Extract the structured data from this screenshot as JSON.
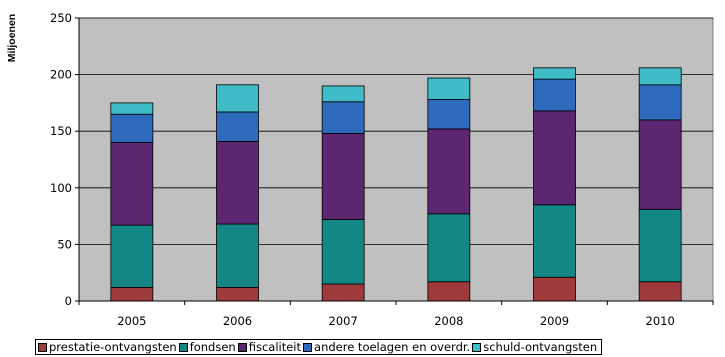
{
  "chart_data": {
    "type": "bar",
    "stacked": true,
    "ylabel": "Miljoenen",
    "xlabel": "",
    "ylim": [
      0,
      250
    ],
    "yticks": [
      0,
      50,
      100,
      150,
      200,
      250
    ],
    "grid": true,
    "legend_position": "bottom",
    "plot_background": "#c0c0c0",
    "categories": [
      "2005",
      "2006",
      "2007",
      "2008",
      "2009",
      "2010"
    ],
    "series": [
      {
        "name": "prestatie-ontvangsten",
        "color": "#9e3a3c",
        "values": [
          12,
          12,
          15,
          17,
          21,
          17
        ]
      },
      {
        "name": "fondsen",
        "color": "#138785",
        "values": [
          55,
          56,
          57,
          60,
          64,
          64
        ]
      },
      {
        "name": "fiscaliteit",
        "color": "#5c2670",
        "values": [
          73,
          73,
          76,
          75,
          83,
          79
        ]
      },
      {
        "name": "andere toelagen en overdr.",
        "color": "#2f6bbd",
        "values": [
          25,
          26,
          28,
          26,
          28,
          31
        ]
      },
      {
        "name": "schuld-ontvangsten",
        "color": "#3fbcc6",
        "values": [
          10,
          24,
          14,
          19,
          10,
          15
        ]
      }
    ]
  }
}
